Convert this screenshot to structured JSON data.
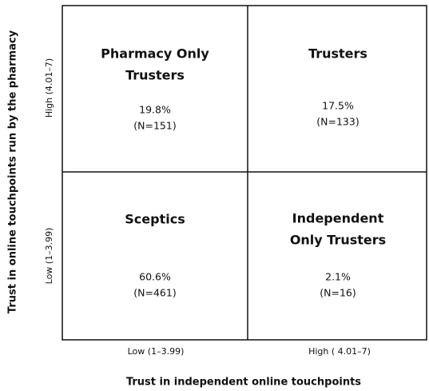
{
  "y_axis": {
    "title": "Trust in online touchpoints run by the pharmacy",
    "levels": [
      "High (4.01–7)",
      "Low (1–3.99)"
    ]
  },
  "x_axis": {
    "title": "Trust in independent online touchpoints",
    "levels": [
      "Low (1–3.99)",
      "High ( 4.01–7)"
    ]
  },
  "quadrants": [
    {
      "title": [
        "Pharmacy Only",
        "Trusters"
      ],
      "share": "19.8%",
      "n": "(N=151)"
    },
    {
      "title": [
        "Trusters"
      ],
      "share": "17.5%",
      "n": "(N=133)"
    },
    {
      "title": [
        "Sceptics"
      ],
      "share": "60.6%",
      "n": "(N=461)"
    },
    {
      "title": [
        "Independent",
        "Only Trusters"
      ],
      "share": "2.1%",
      "n": "(N=16)"
    }
  ]
}
